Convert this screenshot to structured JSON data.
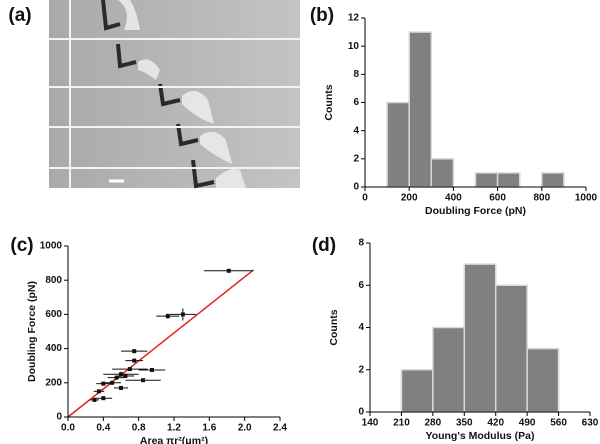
{
  "chart_data": [
    {
      "type": "image",
      "label": "(a)"
    },
    {
      "type": "histogram",
      "label": "(b)",
      "xlabel": "Doubling Force (pN)",
      "ylabel": "Counts",
      "bins": [
        100,
        200,
        300,
        400,
        500,
        600,
        700,
        800,
        900
      ],
      "counts": [
        6,
        11,
        2,
        0,
        1,
        1,
        0,
        1
      ],
      "color": "#808080",
      "xlim": [
        0,
        1000
      ],
      "xticks": [
        0,
        200,
        400,
        600,
        800,
        1000
      ],
      "ylim": [
        0,
        12
      ],
      "yticks": [
        0,
        2,
        4,
        6,
        8,
        10,
        12
      ]
    },
    {
      "type": "scatter",
      "label": "(c)",
      "xlabel": "Area πr²(μm²)",
      "ylabel": "Doubling Force (pN)",
      "x": [
        1.82,
        1.3,
        1.13,
        0.75,
        0.75,
        0.7,
        0.95,
        0.6,
        0.65,
        0.55,
        0.85,
        0.5,
        0.4,
        0.6,
        0.35,
        0.4,
        0.3
      ],
      "y": [
        855,
        600,
        590,
        385,
        330,
        280,
        275,
        250,
        240,
        230,
        215,
        200,
        195,
        170,
        150,
        110,
        100
      ],
      "xerr": [
        0.28,
        0.15,
        0.13,
        0.15,
        0.1,
        0.2,
        0.15,
        0.2,
        0.1,
        0.1,
        0.2,
        0.1,
        0.08,
        0.08,
        0.06,
        0.1,
        0.05
      ],
      "yerr": [
        10,
        35,
        15,
        10,
        10,
        10,
        10,
        15,
        10,
        10,
        10,
        10,
        10,
        10,
        10,
        10,
        10
      ],
      "color": "#111111",
      "fit": {
        "x": [
          0,
          2.1
        ],
        "y": [
          0,
          860
        ],
        "color": "#e02020"
      },
      "xlim": [
        0,
        2.4
      ],
      "xticks": [
        {
          "value": 0,
          "label": "0.0"
        },
        0.4,
        0.8,
        1.2,
        1.6,
        {
          "value": 2,
          "label": "2.0"
        },
        2.4
      ],
      "ylim": [
        0,
        1000
      ],
      "yticks": [
        0,
        200,
        400,
        600,
        800,
        1000
      ]
    },
    {
      "type": "histogram",
      "label": "(d)",
      "xlabel": "Young's Modulus (Pa)",
      "ylabel": "Counts",
      "bins": [
        210,
        280,
        350,
        420,
        490,
        560
      ],
      "counts": [
        2,
        4,
        7,
        6,
        3
      ],
      "color": "#808080",
      "xlim": [
        140,
        630
      ],
      "xticks": [
        140,
        210,
        280,
        350,
        420,
        490,
        560,
        630
      ],
      "ylim": [
        0,
        8
      ],
      "yticks": [
        0,
        2,
        4,
        6,
        8
      ]
    }
  ]
}
